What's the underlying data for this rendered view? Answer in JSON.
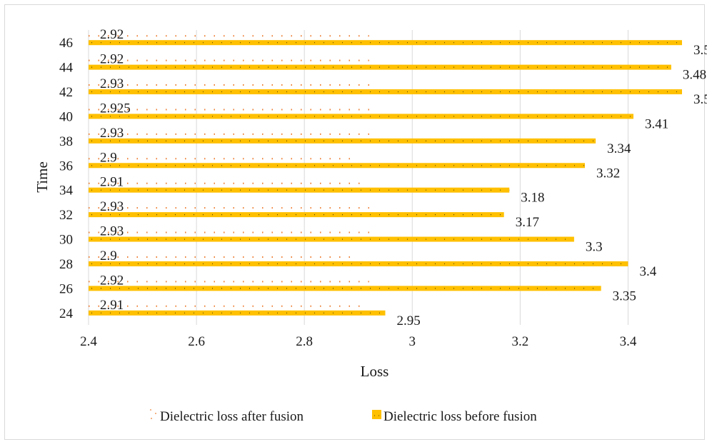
{
  "chart_data": {
    "type": "bar",
    "orientation": "horizontal",
    "title": "",
    "xlabel": "Loss",
    "ylabel": "Time",
    "categories": [
      "24",
      "26",
      "28",
      "30",
      "32",
      "34",
      "36",
      "38",
      "40",
      "42",
      "44",
      "46"
    ],
    "series": [
      {
        "name": "Dielectric loss after fusion",
        "values": [
          2.91,
          2.92,
          2.9,
          2.93,
          2.93,
          2.91,
          2.9,
          2.93,
          2.925,
          2.93,
          2.92,
          2.92
        ],
        "labels": [
          "2.91",
          "2.92",
          "2.9",
          "2.93",
          "2.93",
          "2.91",
          "2.9",
          "2.93",
          "2.925",
          "2.93",
          "2.92",
          "2.92"
        ],
        "color": "#ed7d31",
        "style": "dotted"
      },
      {
        "name": "Dielectric loss before fusion",
        "values": [
          2.95,
          3.35,
          3.4,
          3.3,
          3.17,
          3.18,
          3.32,
          3.34,
          3.41,
          3.5,
          3.48,
          3.5
        ],
        "labels": [
          "2.95",
          "3.35",
          "3.4",
          "3.3",
          "3.17",
          "3.18",
          "3.32",
          "3.34",
          "3.41",
          "3.5",
          "3.48",
          "3.5"
        ],
        "color": "#ffc000",
        "style": "solid"
      }
    ],
    "xlim": [
      2.4,
      3.5
    ],
    "xticks": [
      "2.4",
      "2.6",
      "2.8",
      "3",
      "3.2",
      "3.4"
    ],
    "grid": "vertical",
    "legend_position": "bottom"
  }
}
